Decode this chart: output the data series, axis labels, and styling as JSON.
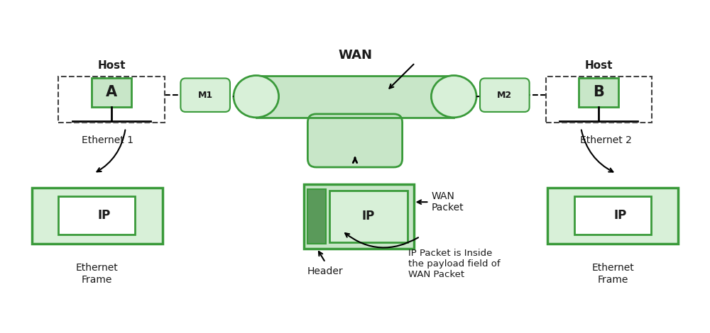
{
  "bg_color": "#ffffff",
  "green_fill": "#c8e6c8",
  "green_fill2": "#d8f0d8",
  "green_edge": "#3a9a3a",
  "green_mid": "#5ab85a",
  "dark_green": "#4a7c4a",
  "text_color": "#1a1a1a",
  "wan_label": "WAN",
  "host_a_label": "Host",
  "host_b_label": "Host",
  "host_a": "A",
  "host_b": "B",
  "m1_label": "M1",
  "m2_label": "M2",
  "eth1_label": "Ethernet 1",
  "eth2_label": "Ethernet 2",
  "eth_frame_label": "Ethernet\nFrame",
  "ip_label": "IP",
  "wan_packet_label": "WAN\nPacket",
  "header_label": "Header",
  "ip_inside_label": "IP Packet is Inside\nthe payload field of\nWAN Packet"
}
